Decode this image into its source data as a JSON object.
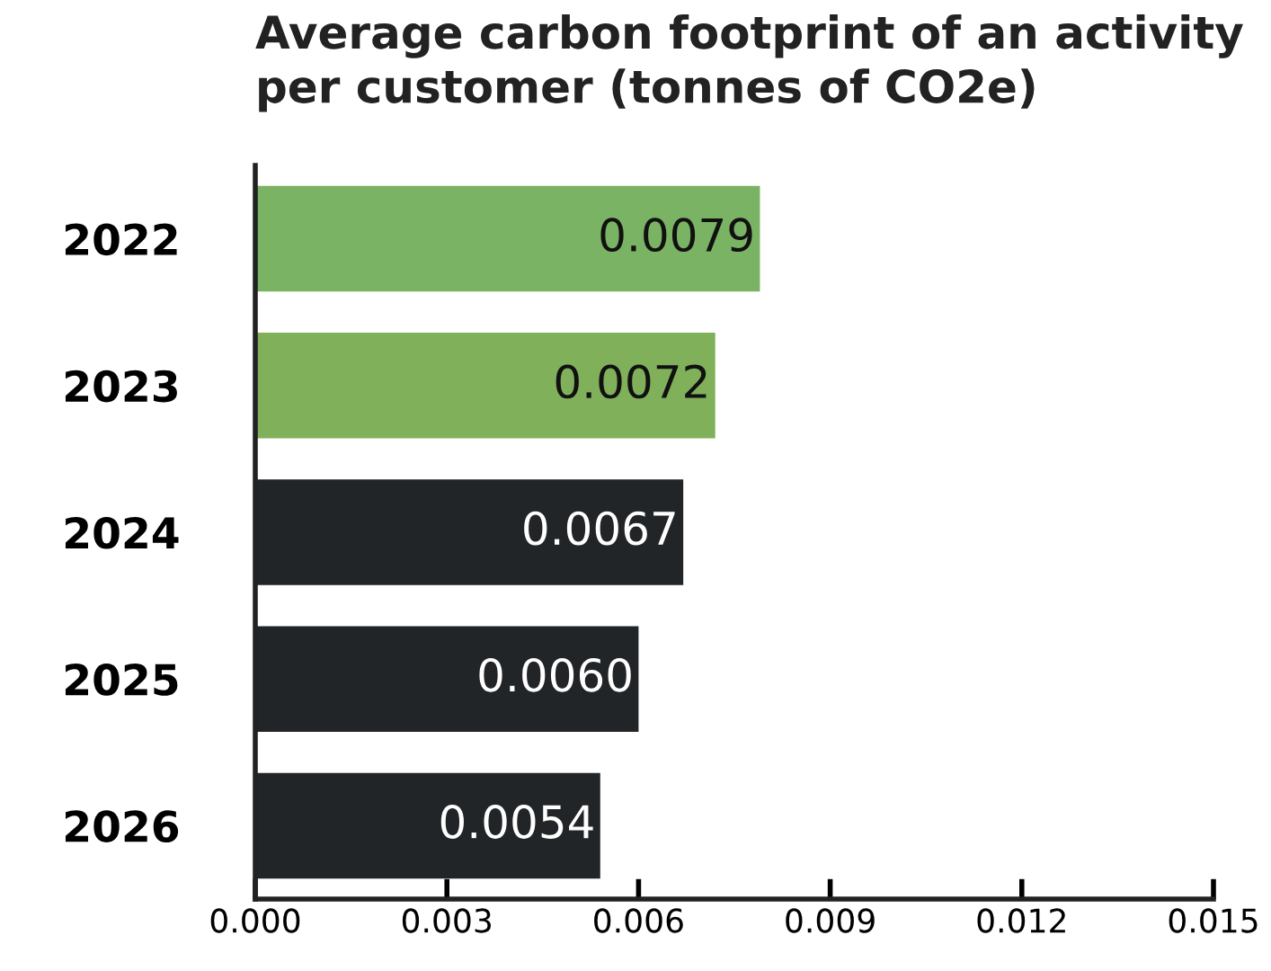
{
  "chart_data": {
    "type": "bar",
    "orientation": "horizontal",
    "title": "Average carbon footprint of an activity\nper customer (tonnes of CO2e)",
    "categories": [
      "2022",
      "2023",
      "2024",
      "2025",
      "2026"
    ],
    "values": [
      0.0079,
      0.0072,
      0.0067,
      0.006,
      0.0054
    ],
    "colors": [
      "#7ab364",
      "#80b05a",
      "#222528",
      "#222528",
      "#222528"
    ],
    "xlim": [
      0,
      0.015
    ],
    "xticks": [
      {
        "value": 0,
        "label": "0.000"
      },
      {
        "value": 0.003,
        "label": "0.003"
      },
      {
        "value": 0.006,
        "label": "0.006"
      },
      {
        "value": 0.009,
        "label": "0.009"
      },
      {
        "value": 0.012,
        "label": "0.012"
      },
      {
        "value": 0.015,
        "label": "0.015"
      }
    ],
    "value_labels": [
      "0.0079",
      "0.0072",
      "0.0067",
      "0.0060",
      "0.0054"
    ],
    "grid": false,
    "legend": false
  }
}
